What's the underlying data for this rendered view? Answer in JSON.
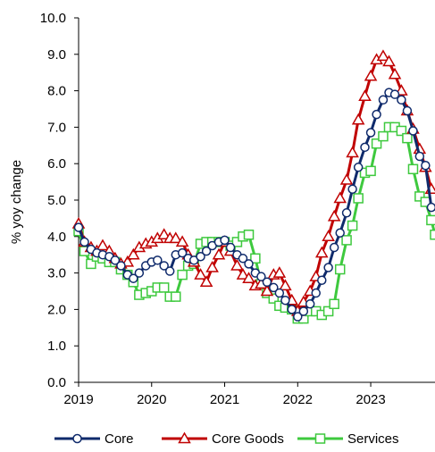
{
  "chart_data": {
    "type": "line",
    "ylabel": "% yoy change",
    "xlabel": "",
    "ylim": [
      0,
      10
    ],
    "yticks": [
      0.0,
      1.0,
      2.0,
      3.0,
      4.0,
      5.0,
      6.0,
      7.0,
      8.0,
      9.0,
      10.0
    ],
    "ytick_labels": [
      "0.0",
      "1.0",
      "2.0",
      "3.0",
      "4.0",
      "5.0",
      "6.0",
      "7.0",
      "8.0",
      "9.0",
      "10.0"
    ],
    "xlim": [
      2019,
      2023.88
    ],
    "xticks": [
      2019,
      2020,
      2021,
      2022,
      2023
    ],
    "xtick_labels": [
      "2019",
      "2020",
      "2021",
      "2022",
      "2023"
    ],
    "legend_position": "bottom",
    "series": [
      {
        "name": "Core",
        "color": "#0f2a6b",
        "marker": "circle",
        "points": [
          [
            2019.0,
            4.25
          ],
          [
            2019.08,
            3.85
          ],
          [
            2019.17,
            3.65
          ],
          [
            2019.25,
            3.55
          ],
          [
            2019.33,
            3.5
          ],
          [
            2019.42,
            3.45
          ],
          [
            2019.5,
            3.35
          ],
          [
            2019.58,
            3.2
          ],
          [
            2019.67,
            2.95
          ],
          [
            2019.75,
            2.85
          ],
          [
            2019.83,
            3.0
          ],
          [
            2019.92,
            3.2
          ],
          [
            2020.0,
            3.3
          ],
          [
            2020.08,
            3.35
          ],
          [
            2020.17,
            3.2
          ],
          [
            2020.25,
            3.05
          ],
          [
            2020.33,
            3.5
          ],
          [
            2020.42,
            3.55
          ],
          [
            2020.5,
            3.4
          ],
          [
            2020.58,
            3.35
          ],
          [
            2020.67,
            3.45
          ],
          [
            2020.75,
            3.6
          ],
          [
            2020.83,
            3.75
          ],
          [
            2020.92,
            3.85
          ],
          [
            2021.0,
            3.9
          ],
          [
            2021.08,
            3.7
          ],
          [
            2021.17,
            3.5
          ],
          [
            2021.25,
            3.4
          ],
          [
            2021.33,
            3.25
          ],
          [
            2021.42,
            3.0
          ],
          [
            2021.5,
            2.9
          ],
          [
            2021.58,
            2.75
          ],
          [
            2021.67,
            2.6
          ],
          [
            2021.75,
            2.45
          ],
          [
            2021.83,
            2.25
          ],
          [
            2021.92,
            2.0
          ],
          [
            2022.0,
            1.8
          ],
          [
            2022.08,
            1.95
          ],
          [
            2022.17,
            2.15
          ],
          [
            2022.25,
            2.45
          ],
          [
            2022.33,
            2.8
          ],
          [
            2022.42,
            3.15
          ],
          [
            2022.5,
            3.7
          ],
          [
            2022.58,
            4.1
          ],
          [
            2022.67,
            4.65
          ],
          [
            2022.75,
            5.3
          ],
          [
            2022.83,
            5.9
          ],
          [
            2022.92,
            6.45
          ],
          [
            2023.0,
            6.85
          ],
          [
            2023.08,
            7.35
          ],
          [
            2023.17,
            7.75
          ],
          [
            2023.25,
            7.95
          ],
          [
            2023.33,
            7.9
          ],
          [
            2023.42,
            7.75
          ],
          [
            2023.5,
            7.45
          ],
          [
            2023.58,
            6.9
          ],
          [
            2023.67,
            6.2
          ],
          [
            2023.75,
            5.95
          ],
          [
            2023.83,
            4.8
          ]
        ]
      },
      {
        "name": "Core Goods",
        "color": "#c00000",
        "marker": "triangle",
        "points": [
          [
            2019.0,
            4.35
          ],
          [
            2019.08,
            3.85
          ],
          [
            2019.17,
            3.7
          ],
          [
            2019.25,
            3.6
          ],
          [
            2019.33,
            3.75
          ],
          [
            2019.42,
            3.6
          ],
          [
            2019.5,
            3.4
          ],
          [
            2019.58,
            3.25
          ],
          [
            2019.67,
            3.3
          ],
          [
            2019.75,
            3.5
          ],
          [
            2019.83,
            3.7
          ],
          [
            2019.92,
            3.8
          ],
          [
            2020.0,
            3.85
          ],
          [
            2020.08,
            3.95
          ],
          [
            2020.17,
            4.05
          ],
          [
            2020.25,
            3.95
          ],
          [
            2020.33,
            3.95
          ],
          [
            2020.42,
            3.85
          ],
          [
            2020.5,
            3.5
          ],
          [
            2020.58,
            3.3
          ],
          [
            2020.67,
            2.95
          ],
          [
            2020.75,
            2.75
          ],
          [
            2020.83,
            3.15
          ],
          [
            2020.92,
            3.5
          ],
          [
            2021.0,
            3.85
          ],
          [
            2021.08,
            3.6
          ],
          [
            2021.17,
            3.2
          ],
          [
            2021.25,
            2.95
          ],
          [
            2021.33,
            2.85
          ],
          [
            2021.42,
            2.65
          ],
          [
            2021.5,
            2.7
          ],
          [
            2021.58,
            2.5
          ],
          [
            2021.67,
            2.95
          ],
          [
            2021.75,
            3.0
          ],
          [
            2021.83,
            2.65
          ],
          [
            2021.92,
            2.25
          ],
          [
            2022.0,
            1.95
          ],
          [
            2022.08,
            2.2
          ],
          [
            2022.17,
            2.5
          ],
          [
            2022.25,
            2.9
          ],
          [
            2022.33,
            3.55
          ],
          [
            2022.42,
            4.0
          ],
          [
            2022.5,
            4.55
          ],
          [
            2022.58,
            5.05
          ],
          [
            2022.67,
            5.55
          ],
          [
            2022.75,
            6.3
          ],
          [
            2022.83,
            7.2
          ],
          [
            2022.92,
            7.85
          ],
          [
            2023.0,
            8.4
          ],
          [
            2023.08,
            8.85
          ],
          [
            2023.17,
            8.95
          ],
          [
            2023.25,
            8.8
          ],
          [
            2023.33,
            8.45
          ],
          [
            2023.42,
            8.0
          ],
          [
            2023.5,
            7.45
          ],
          [
            2023.58,
            6.95
          ],
          [
            2023.67,
            6.4
          ],
          [
            2023.75,
            5.9
          ],
          [
            2023.83,
            5.3
          ]
        ]
      },
      {
        "name": "Services",
        "color": "#3ec93e",
        "marker": "square",
        "points": [
          [
            2019.0,
            4.15
          ],
          [
            2019.08,
            3.6
          ],
          [
            2019.17,
            3.25
          ],
          [
            2019.25,
            3.45
          ],
          [
            2019.33,
            3.4
          ],
          [
            2019.42,
            3.3
          ],
          [
            2019.5,
            3.3
          ],
          [
            2019.58,
            3.1
          ],
          [
            2019.67,
            2.95
          ],
          [
            2019.75,
            2.75
          ],
          [
            2019.83,
            2.4
          ],
          [
            2019.92,
            2.45
          ],
          [
            2020.0,
            2.5
          ],
          [
            2020.08,
            2.6
          ],
          [
            2020.17,
            2.6
          ],
          [
            2020.25,
            2.35
          ],
          [
            2020.33,
            2.35
          ],
          [
            2020.42,
            2.95
          ],
          [
            2020.5,
            3.2
          ],
          [
            2020.58,
            3.25
          ],
          [
            2020.67,
            3.8
          ],
          [
            2020.75,
            3.85
          ],
          [
            2020.83,
            3.85
          ],
          [
            2020.92,
            3.85
          ],
          [
            2021.0,
            3.85
          ],
          [
            2021.08,
            3.75
          ],
          [
            2021.17,
            3.85
          ],
          [
            2021.25,
            4.0
          ],
          [
            2021.33,
            4.05
          ],
          [
            2021.42,
            3.4
          ],
          [
            2021.5,
            2.7
          ],
          [
            2021.58,
            2.45
          ],
          [
            2021.67,
            2.3
          ],
          [
            2021.75,
            2.1
          ],
          [
            2021.83,
            2.05
          ],
          [
            2021.92,
            2.0
          ],
          [
            2022.0,
            1.75
          ],
          [
            2022.08,
            1.75
          ],
          [
            2022.17,
            1.95
          ],
          [
            2022.25,
            1.95
          ],
          [
            2022.33,
            1.85
          ],
          [
            2022.42,
            1.95
          ],
          [
            2022.5,
            2.15
          ],
          [
            2022.58,
            3.1
          ],
          [
            2022.67,
            3.9
          ],
          [
            2022.75,
            4.3
          ],
          [
            2022.83,
            5.05
          ],
          [
            2022.92,
            5.75
          ],
          [
            2023.0,
            5.8
          ],
          [
            2023.08,
            6.55
          ],
          [
            2023.17,
            6.75
          ],
          [
            2023.25,
            7.0
          ],
          [
            2023.33,
            7.0
          ],
          [
            2023.42,
            6.9
          ],
          [
            2023.5,
            6.7
          ],
          [
            2023.58,
            5.85
          ],
          [
            2023.67,
            5.1
          ],
          [
            2023.75,
            4.95
          ],
          [
            2023.83,
            4.45
          ],
          [
            2023.88,
            4.05
          ]
        ]
      }
    ]
  }
}
